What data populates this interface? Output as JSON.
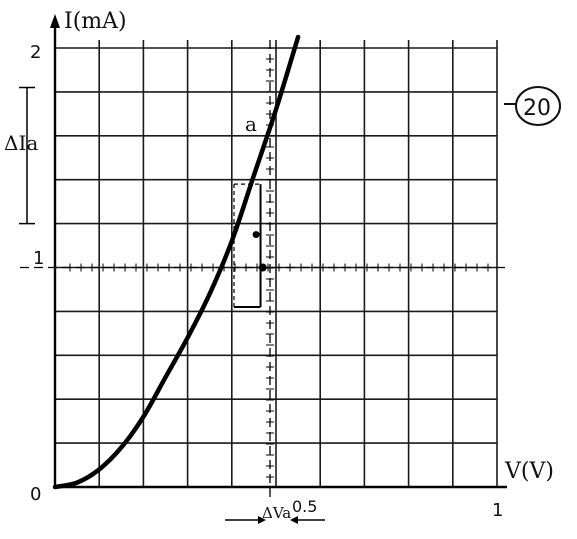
{
  "chart_data": {
    "type": "line",
    "ylabel": "I(mA)",
    "xlabel": "V(V)",
    "xlim": [
      0,
      1
    ],
    "ylim": [
      0,
      2
    ],
    "grid": true,
    "x_ticks": [
      {
        "value": 0.5,
        "label": "0.5"
      },
      {
        "value": 1,
        "label": "1"
      }
    ],
    "y_ticks": [
      {
        "value": 0,
        "label": "0"
      },
      {
        "value": 1,
        "label": "1"
      },
      {
        "value": 2,
        "label": "2"
      }
    ],
    "series": [
      {
        "x": [
          0,
          0.05,
          0.1,
          0.15,
          0.2,
          0.25,
          0.3,
          0.35,
          0.4,
          0.45,
          0.5,
          0.55
        ],
        "y": [
          0,
          0.02,
          0.08,
          0.18,
          0.32,
          0.5,
          0.68,
          0.88,
          1.12,
          1.42,
          1.72,
          2.05
        ]
      }
    ],
    "annotations": {
      "point_label": "a",
      "delta_i_label": "ΔIa",
      "delta_v_label": "ΔVa",
      "figure_number": "20"
    }
  }
}
